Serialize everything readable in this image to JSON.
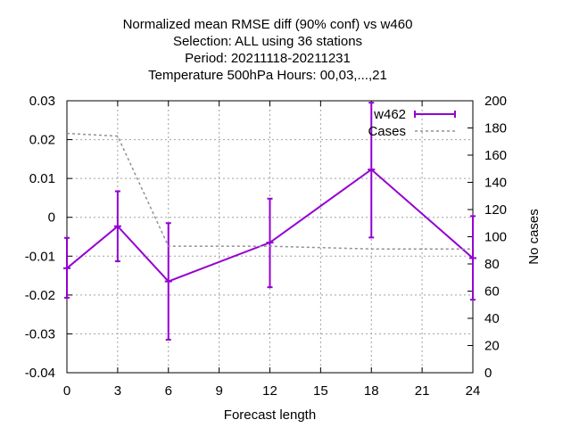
{
  "chart_data": {
    "type": "line",
    "title_lines": [
      "Normalized mean RMSE diff (90% conf) vs w460",
      "Selection: ALL using    36 stations",
      "Period: 20211118-20211231",
      "Temperature 500hPa   Hours:  00,03,...,21"
    ],
    "xlabel": "Forecast length",
    "ylabel": "",
    "y2label": "No cases",
    "xlim": [
      0,
      24
    ],
    "ylim": [
      -0.04,
      0.03
    ],
    "y2lim": [
      0,
      200
    ],
    "xticks": [
      0,
      3,
      6,
      9,
      12,
      15,
      18,
      21,
      24
    ],
    "xtick_labels": [
      "0",
      "3",
      "6",
      "9",
      "12",
      "15",
      "18",
      "21",
      "24"
    ],
    "yticks": [
      -0.04,
      -0.03,
      -0.02,
      -0.01,
      0,
      0.01,
      0.02,
      0.03
    ],
    "ytick_labels": [
      "-0.04",
      "-0.03",
      "-0.02",
      "-0.01",
      "0",
      "0.01",
      "0.02",
      "0.03"
    ],
    "y2ticks": [
      0,
      20,
      40,
      60,
      80,
      100,
      120,
      140,
      160,
      180,
      200
    ],
    "y2tick_labels": [
      "0",
      "20",
      "40",
      "60",
      "80",
      "100",
      "120",
      "140",
      "160",
      "180",
      "200"
    ],
    "grid": true,
    "legend_position": "top-right",
    "series": [
      {
        "name": "w462",
        "axis": "left",
        "style": "errorbars",
        "color": "#9400d3",
        "x": [
          0,
          3,
          6,
          12,
          18,
          24
        ],
        "y": [
          -0.0131,
          -0.0023,
          -0.0165,
          -0.0065,
          0.0123,
          -0.0105
        ],
        "y_low": [
          -0.0207,
          -0.0113,
          -0.0315,
          -0.018,
          -0.0052,
          -0.0212
        ],
        "y_high": [
          -0.0053,
          0.0067,
          -0.0015,
          0.0048,
          0.0295,
          0.0003
        ]
      },
      {
        "name": "Cases",
        "axis": "right",
        "style": "dashed",
        "color": "#909090",
        "x": [
          0,
          3,
          6,
          12,
          18,
          24
        ],
        "y": [
          176,
          174,
          93,
          93,
          91,
          91
        ]
      }
    ]
  }
}
